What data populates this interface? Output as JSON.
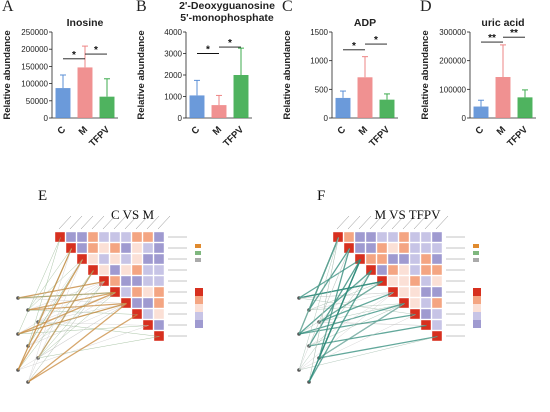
{
  "colors": {
    "C": "#5b8fd6",
    "M": "#ee8585",
    "TFPV": "#3cab4e",
    "sig": "#111111"
  },
  "chart_data": [
    {
      "type": "bar",
      "panel": "A",
      "title": "Inosine",
      "title2": "",
      "ylabel": "Relative abundance",
      "categories": [
        "C",
        "M",
        "TFPV"
      ],
      "values": [
        87000,
        147000,
        62000
      ],
      "errors": [
        38000,
        62000,
        52000
      ],
      "ylim": [
        0,
        250000
      ],
      "yticks": [
        "0",
        "50000",
        "100000",
        "150000",
        "200000",
        "250000"
      ],
      "significance": [
        {
          "from": 0,
          "to": 1,
          "label": "*",
          "level": 172000
        },
        {
          "from": 1,
          "to": 2,
          "label": "*",
          "level": 186000
        }
      ]
    },
    {
      "type": "bar",
      "panel": "B",
      "title": "2'-Deoxyguanosine",
      "title2": "5'-monophosphate",
      "ylabel": "Relative abundance",
      "categories": [
        "C",
        "M",
        "TFPV"
      ],
      "values": [
        1050,
        600,
        2000
      ],
      "errors": [
        700,
        450,
        1250
      ],
      "ylim": [
        0,
        4000
      ],
      "yticks": [
        "0",
        "1000",
        "2000",
        "3000",
        "4000"
      ],
      "significance": [
        {
          "from": 0,
          "to": 1,
          "label": "*",
          "level": 3000
        },
        {
          "from": 1,
          "to": 2,
          "label": "*",
          "level": 3300
        }
      ]
    },
    {
      "type": "bar",
      "panel": "C",
      "title": "ADP",
      "title2": "",
      "ylabel": "Relative abundance",
      "categories": [
        "C",
        "M",
        "TFPV"
      ],
      "values": [
        350,
        710,
        320
      ],
      "errors": [
        120,
        360,
        100
      ],
      "ylim": [
        0,
        1500
      ],
      "yticks": [
        "0",
        "500",
        "1000",
        "1500"
      ],
      "significance": [
        {
          "from": 0,
          "to": 1,
          "label": "*",
          "level": 1190
        },
        {
          "from": 1,
          "to": 2,
          "label": "*",
          "level": 1290
        }
      ]
    },
    {
      "type": "bar",
      "panel": "D",
      "title": "uric acid",
      "title2": "",
      "ylabel": "Relative abundance",
      "categories": [
        "C",
        "M",
        "TFPV"
      ],
      "values": [
        40000,
        143000,
        72000
      ],
      "errors": [
        22000,
        112000,
        26000
      ],
      "ylim": [
        0,
        300000
      ],
      "yticks": [
        "0",
        "100000",
        "200000",
        "300000"
      ],
      "significance": [
        {
          "from": 0,
          "to": 1,
          "label": "**",
          "level": 265000
        },
        {
          "from": 1,
          "to": 2,
          "label": "**",
          "level": 282000
        }
      ]
    }
  ],
  "bottom": [
    {
      "letter": "E",
      "title": "C VS M"
    },
    {
      "letter": "F",
      "title": "M VS TFPV"
    }
  ]
}
